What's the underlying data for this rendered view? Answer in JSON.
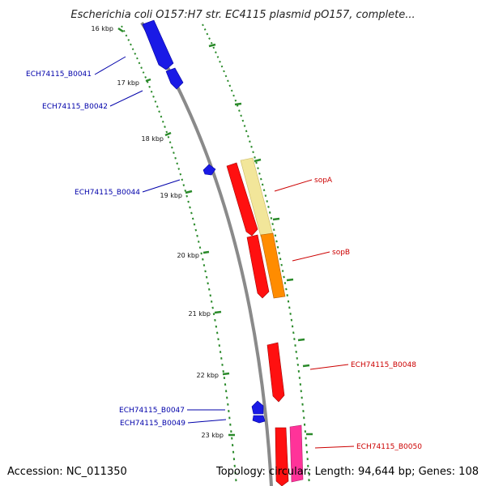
{
  "title": "Escherichia coli O157:H7 str. EC4115 plasmid pO157, complete...",
  "footer": {
    "accession": "Accession: NC_011350",
    "summary": "Topology: circular; Length: 94,644 bp; Genes: 108"
  },
  "colors": {
    "backbone": "#8a8a8a",
    "ticks": "#2a8a2a",
    "strand_minus": "#1010e0",
    "strand_plus": "#ff0000",
    "plus_label": "#cc0000",
    "minus_label": "#0000aa"
  },
  "scale_ticks": [
    "16 kbp",
    "17 kbp",
    "18 kbp",
    "19 kbp",
    "20 kbp",
    "21 kbp",
    "22 kbp",
    "23 kbp"
  ],
  "genes_minus": [
    {
      "name": "ECH74115_B0041"
    },
    {
      "name": "ECH74115_B0042"
    },
    {
      "name": "ECH74115_B0044"
    },
    {
      "name": "ECH74115_B0047"
    },
    {
      "name": "ECH74115_B0049"
    }
  ],
  "genes_plus": [
    {
      "name": "sopA"
    },
    {
      "name": "sopB"
    },
    {
      "name": "ECH74115_B0048"
    },
    {
      "name": "ECH74115_B0050"
    }
  ]
}
